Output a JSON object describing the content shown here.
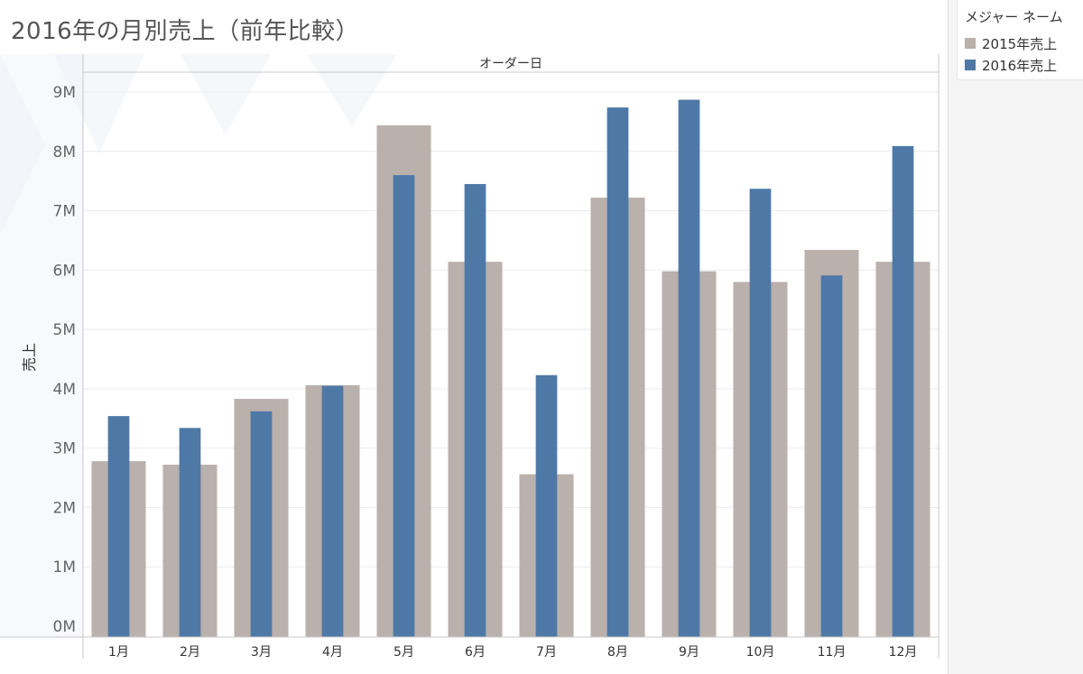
{
  "title": "2016年の月別売上（前年比較）",
  "legend": {
    "title": "メジャー ネーム",
    "items": [
      {
        "label": "2015年売上",
        "color": "#bab0ac"
      },
      {
        "label": "2016年売上",
        "color": "#4e79a7"
      }
    ]
  },
  "chart_data": {
    "type": "bar",
    "title": "2016年の月別売上（前年比較）",
    "column_header": "オーダー日",
    "ylabel": "売上",
    "ylim": [
      0,
      9
    ],
    "yticks": [
      "0M",
      "1M",
      "2M",
      "3M",
      "4M",
      "5M",
      "6M",
      "7M",
      "8M",
      "9M"
    ],
    "categories": [
      "1月",
      "2月",
      "3月",
      "4月",
      "5月",
      "6月",
      "7月",
      "8月",
      "9月",
      "10月",
      "11月",
      "12月"
    ],
    "series": [
      {
        "name": "2015年売上",
        "color": "#bab0ac",
        "values": [
          2.78,
          2.72,
          3.83,
          4.06,
          8.44,
          6.14,
          2.56,
          7.22,
          5.98,
          5.8,
          6.34,
          6.14
        ]
      },
      {
        "name": "2016年売上",
        "color": "#4e79a7",
        "values": [
          3.54,
          3.34,
          3.62,
          4.05,
          7.6,
          7.45,
          4.23,
          8.74,
          8.87,
          7.37,
          5.91,
          8.09
        ]
      }
    ]
  }
}
